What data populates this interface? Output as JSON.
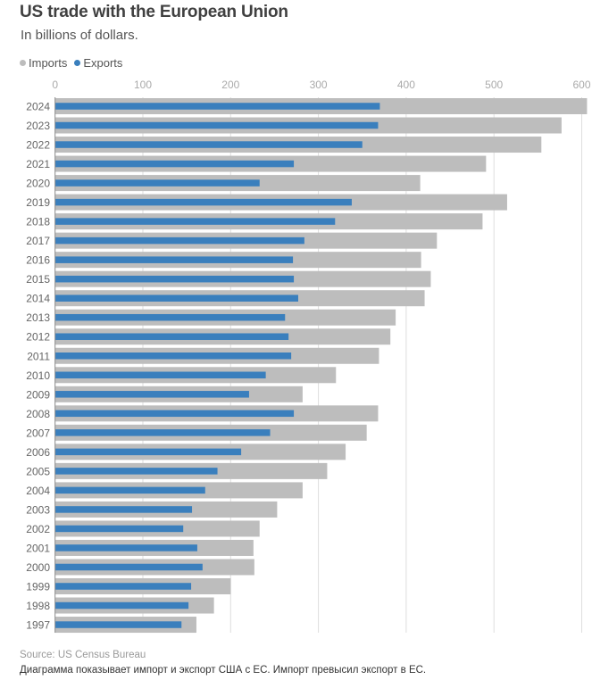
{
  "title": "US trade with the European Union",
  "subtitle": "In billions of dollars.",
  "legend": [
    {
      "label": "Imports",
      "color": "#bdbdbd"
    },
    {
      "label": "Exports",
      "color": "#3a7fbd"
    }
  ],
  "source": "Source: US Census Bureau",
  "note": "Диаграмма показывает импорт и экспорт США с ЕС. Импорт превысил экспорт в ЕС.",
  "chart_data": {
    "type": "bar",
    "orientation": "horizontal",
    "title": "US trade with the European Union",
    "subtitle": "In billions of dollars.",
    "xlabel": "",
    "ylabel": "",
    "xlim": [
      0,
      610
    ],
    "xticks": [
      0,
      100,
      200,
      300,
      400,
      500,
      600
    ],
    "grid": true,
    "legend_position": "top-left",
    "categories": [
      "2024",
      "2023",
      "2022",
      "2021",
      "2020",
      "2019",
      "2018",
      "2017",
      "2016",
      "2015",
      "2014",
      "2013",
      "2012",
      "2011",
      "2010",
      "2009",
      "2008",
      "2007",
      "2006",
      "2005",
      "2004",
      "2003",
      "2002",
      "2001",
      "2000",
      "1999",
      "1998",
      "1997"
    ],
    "series": [
      {
        "name": "Imports",
        "color": "#bdbdbd",
        "values": [
          606,
          577,
          554,
          491,
          416,
          515,
          487,
          435,
          417,
          428,
          421,
          388,
          382,
          369,
          320,
          282,
          368,
          355,
          331,
          310,
          282,
          253,
          233,
          226,
          227,
          200,
          181,
          161
        ]
      },
      {
        "name": "Exports",
        "color": "#3a7fbd",
        "values": [
          370,
          368,
          350,
          272,
          233,
          338,
          319,
          284,
          271,
          272,
          277,
          262,
          266,
          269,
          240,
          221,
          272,
          245,
          212,
          185,
          171,
          156,
          146,
          162,
          168,
          155,
          152,
          144
        ]
      }
    ]
  }
}
